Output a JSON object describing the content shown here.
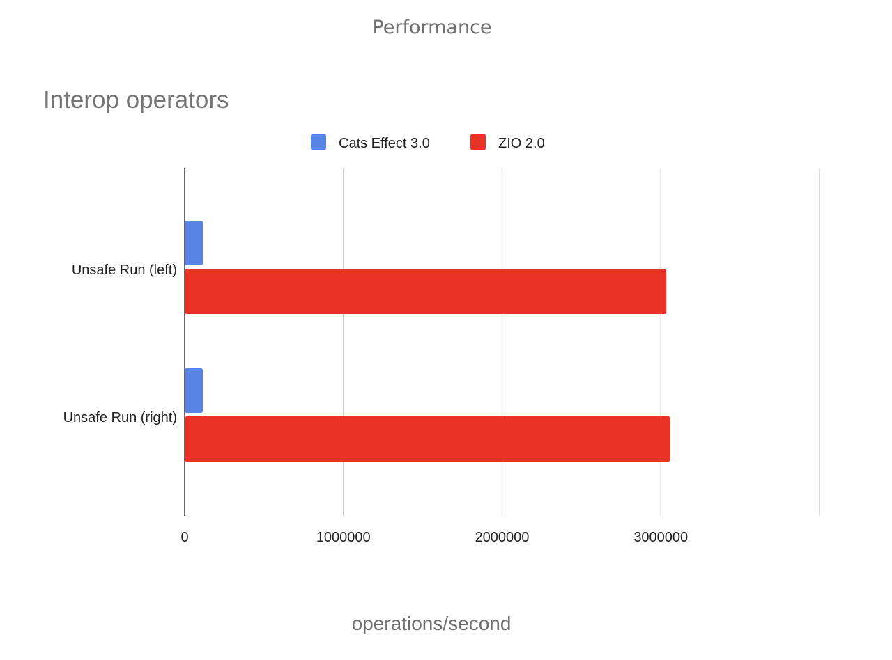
{
  "slide": {
    "title": "Performance"
  },
  "chart_data": {
    "type": "bar",
    "orientation": "horizontal",
    "title": "Interop operators",
    "xlabel": "operations/second",
    "ylabel": "",
    "categories": [
      "Unsafe Run (left)",
      "Unsafe Run (right)"
    ],
    "series": [
      {
        "name": "Cats Effect 3.0",
        "color": "#5884e6",
        "values": [
          115000,
          115000
        ]
      },
      {
        "name": "ZIO 2.0",
        "color": "#e83326",
        "values": [
          3035000,
          3060000
        ]
      }
    ],
    "xlim": [
      0,
      4000000
    ],
    "xticks": [
      0,
      1000000,
      2000000,
      3000000
    ],
    "xtick_labels": [
      "0",
      "1000000",
      "2000000",
      "3000000"
    ],
    "gridlines": [
      1000000,
      2000000,
      3000000,
      4000000
    ],
    "grid": true,
    "legend_position": "top"
  }
}
